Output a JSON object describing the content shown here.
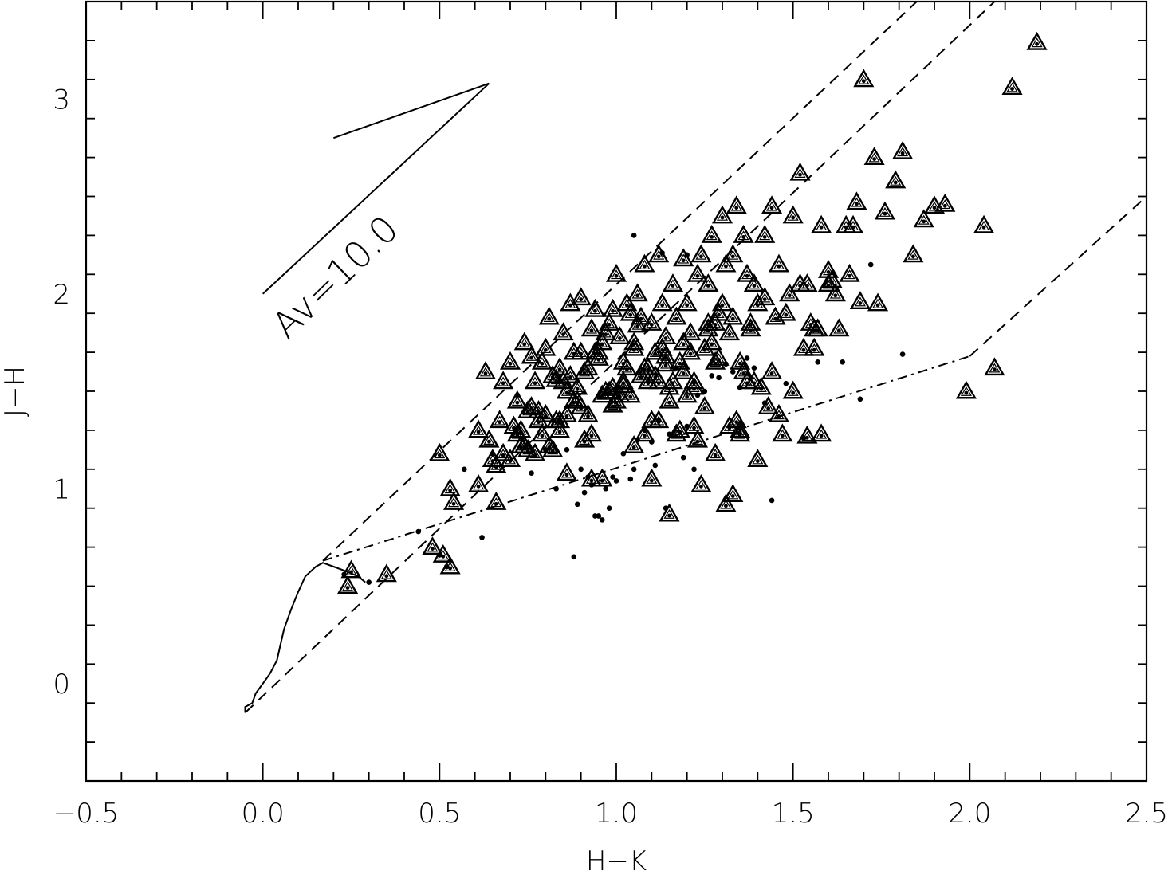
{
  "chart_data": {
    "type": "scatter",
    "title": "",
    "xlabel": "H−K",
    "ylabel": "J−H",
    "xlim": [
      -0.5,
      2.5
    ],
    "ylim": [
      -0.5,
      3.5
    ],
    "x_ticks": [
      {
        "value": -0.5,
        "label": "−0.5"
      },
      {
        "value": 0.0,
        "label": "0.0"
      },
      {
        "value": 0.5,
        "label": "0.5"
      },
      {
        "value": 1.0,
        "label": "1.0"
      },
      {
        "value": 1.5,
        "label": "1.5"
      },
      {
        "value": 2.0,
        "label": "2.0"
      },
      {
        "value": 2.5,
        "label": "2.5"
      }
    ],
    "y_ticks": [
      {
        "value": 0,
        "label": "0"
      },
      {
        "value": 1,
        "label": "1"
      },
      {
        "value": 2,
        "label": "2"
      },
      {
        "value": 3,
        "label": "3"
      }
    ],
    "x_minor_step": 0.1,
    "y_minor_step": 0.2,
    "grid": false,
    "legend": "none",
    "annotation": {
      "text": "Av=10.0",
      "vector_lines": [
        [
          [
            0.0,
            2.0
          ],
          [
            0.64,
            3.08
          ]
        ],
        [
          [
            0.2,
            2.8
          ],
          [
            0.64,
            3.08
          ]
        ]
      ],
      "text_anchor": [
        0.07,
        1.76
      ],
      "rotation_deg": -44
    },
    "reference_lines": [
      {
        "name": "main-sequence-locus",
        "style": "solid",
        "points": [
          [
            -0.05,
            -0.15
          ],
          [
            -0.05,
            -0.12
          ],
          [
            -0.03,
            -0.1
          ],
          [
            -0.02,
            -0.05
          ],
          [
            0.0,
            0.0
          ],
          [
            0.02,
            0.05
          ],
          [
            0.04,
            0.12
          ],
          [
            0.05,
            0.2
          ],
          [
            0.06,
            0.28
          ],
          [
            0.08,
            0.38
          ],
          [
            0.1,
            0.47
          ],
          [
            0.12,
            0.55
          ],
          [
            0.15,
            0.6
          ],
          [
            0.17,
            0.62
          ],
          [
            0.2,
            0.6
          ],
          [
            0.23,
            0.58
          ],
          [
            0.27,
            0.55
          ],
          [
            0.29,
            0.52
          ]
        ]
      },
      {
        "name": "reddening-band-upper",
        "style": "dashed",
        "points": [
          [
            0.17,
            0.63
          ],
          [
            1.85,
            3.5
          ]
        ]
      },
      {
        "name": "reddening-band-middle",
        "style": "dashed",
        "points": [
          [
            -0.05,
            -0.15
          ],
          [
            2.07,
            3.5
          ]
        ]
      },
      {
        "name": "reddening-band-lower",
        "style": "dashed",
        "points": [
          [
            2.0,
            1.68
          ],
          [
            2.5,
            2.5
          ]
        ]
      },
      {
        "name": "ctts-locus",
        "style": "dashdot",
        "points": [
          [
            0.17,
            0.63
          ],
          [
            2.0,
            1.68
          ]
        ]
      }
    ],
    "series": [
      {
        "marker": "triangle-with-dot",
        "x": [
          0.25,
          0.24,
          0.35,
          0.48,
          0.51,
          0.53,
          0.5,
          0.53,
          0.54,
          0.61,
          0.63,
          0.61,
          0.64,
          0.65,
          0.66,
          0.67,
          0.68,
          0.7,
          0.72,
          0.73,
          0.74,
          0.75,
          0.76,
          0.77,
          0.78,
          0.8,
          0.81,
          0.82,
          0.83,
          0.84,
          0.85,
          0.86,
          0.87,
          0.88,
          0.89,
          0.9,
          0.91,
          0.92,
          0.93,
          0.94,
          0.95,
          0.96,
          0.97,
          0.98,
          0.99,
          1.0,
          1.01,
          1.02,
          1.03,
          1.04,
          1.05,
          1.06,
          1.07,
          1.08,
          1.09,
          1.1,
          1.11,
          1.12,
          1.13,
          1.14,
          1.15,
          1.16,
          1.17,
          1.18,
          1.19,
          1.2,
          1.21,
          1.22,
          1.23,
          1.24,
          1.25,
          1.26,
          1.27,
          1.28,
          1.29,
          1.3,
          1.31,
          1.32,
          1.33,
          1.34,
          1.35,
          1.36,
          1.37,
          1.38,
          1.39,
          1.4,
          1.42,
          1.44,
          1.46,
          1.48,
          1.5,
          1.52,
          1.54,
          1.56,
          1.58,
          1.6,
          1.62,
          1.65,
          1.68,
          1.7,
          1.73,
          1.76,
          1.79,
          1.81,
          1.84,
          1.87,
          1.9,
          1.93,
          2.04,
          2.12,
          2.19,
          1.69,
          1.99,
          2.07,
          1.1,
          1.15,
          1.24,
          1.31,
          1.33,
          1.35,
          0.86,
          0.93,
          0.96,
          0.82,
          0.77,
          0.74,
          0.7,
          1.02,
          1.08,
          0.88,
          0.99,
          1.12,
          1.19,
          1.28,
          1.36,
          1.41,
          0.9,
          0.95,
          1.05,
          1.13,
          1.21,
          1.27,
          1.38,
          1.45,
          1.53,
          1.57,
          1.63,
          1.74,
          0.79,
          0.83,
          0.87,
          0.92,
          0.97,
          1.01,
          1.06,
          1.09,
          1.14,
          1.17,
          1.22,
          1.26,
          1.29,
          1.34,
          1.39,
          1.44,
          1.49,
          1.55,
          1.61,
          1.66,
          0.75,
          0.8,
          0.85,
          0.89,
          0.94,
          0.98,
          1.03,
          1.07,
          1.11,
          1.16,
          1.2,
          1.25,
          1.3,
          1.37,
          1.43,
          1.5,
          1.58,
          0.72,
          0.78,
          0.84,
          0.91,
          1.0,
          1.04,
          1.12,
          1.18,
          1.23,
          1.32,
          1.4,
          1.47,
          1.54,
          0.68,
          0.71,
          0.76,
          0.81,
          0.86,
          0.93,
          0.99,
          1.05,
          1.1,
          1.15,
          1.22,
          1.28,
          1.35,
          1.46,
          1.56,
          1.6,
          0.66,
          0.73,
          0.79,
          0.84,
          0.9,
          0.96,
          1.02,
          1.08,
          1.14,
          1.19,
          1.26,
          1.33,
          1.42,
          1.52,
          1.67
        ],
        "y": [
          0.58,
          0.5,
          0.56,
          0.7,
          0.66,
          0.6,
          1.18,
          1.0,
          0.93,
          1.3,
          1.6,
          1.02,
          1.25,
          1.15,
          0.93,
          1.35,
          1.55,
          1.65,
          1.45,
          1.3,
          1.75,
          1.2,
          1.68,
          1.55,
          1.4,
          1.72,
          1.88,
          1.58,
          1.35,
          1.62,
          1.8,
          1.5,
          1.95,
          1.7,
          1.45,
          1.98,
          1.6,
          1.38,
          1.82,
          1.92,
          1.7,
          1.75,
          1.5,
          1.85,
          1.92,
          2.1,
          1.78,
          1.65,
          1.95,
          1.9,
          1.72,
          2.0,
          1.88,
          2.15,
          1.62,
          1.85,
          1.7,
          2.2,
          1.95,
          1.78,
          1.52,
          2.05,
          1.88,
          1.65,
          2.18,
          1.95,
          1.8,
          1.55,
          2.1,
          2.2,
          1.72,
          2.05,
          2.3,
          1.85,
          1.9,
          2.4,
          2.15,
          1.8,
          2.2,
          2.45,
          1.65,
          2.3,
          2.1,
          1.85,
          2.05,
          1.95,
          2.3,
          2.45,
          2.15,
          1.9,
          2.4,
          2.62,
          2.05,
          1.82,
          2.35,
          2.12,
          2.0,
          2.35,
          2.47,
          3.1,
          2.7,
          2.42,
          2.58,
          2.73,
          2.2,
          2.38,
          2.45,
          2.46,
          2.35,
          3.06,
          3.29,
          1.96,
          1.5,
          1.62,
          1.05,
          0.87,
          1.02,
          0.92,
          0.97,
          1.3,
          1.08,
          1.05,
          1.05,
          1.2,
          1.18,
          1.22,
          1.15,
          1.53,
          1.28,
          1.45,
          1.43,
          1.55,
          1.6,
          1.65,
          1.6,
          1.52,
          1.7,
          1.67,
          1.75,
          1.72,
          1.7,
          1.75,
          1.82,
          1.88,
          1.72,
          1.82,
          1.82,
          1.95,
          1.65,
          1.56,
          1.58,
          1.62,
          1.8,
          1.48,
          1.84,
          1.55,
          1.64,
          1.28,
          1.52,
          1.85,
          1.67,
          1.35,
          1.55,
          1.6,
          2.0,
          1.85,
          2.07,
          2.1,
          1.4,
          1.38,
          1.55,
          1.52,
          1.7,
          1.5,
          1.62,
          1.58,
          1.58,
          1.55,
          1.48,
          1.42,
          1.95,
          1.55,
          1.42,
          1.5,
          1.28,
          1.28,
          1.35,
          1.3,
          1.25,
          1.45,
          1.48,
          1.35,
          1.3,
          1.25,
          1.32,
          1.15,
          1.28,
          1.27,
          1.18,
          1.32,
          1.42,
          1.22,
          1.38,
          1.28,
          1.52,
          1.22,
          1.35,
          1.45,
          1.32,
          1.18,
          1.28,
          1.38,
          1.72,
          2.05,
          1.12,
          1.22,
          1.28,
          1.35,
          1.42,
          1.48,
          1.55,
          1.62,
          1.68,
          1.75,
          1.82,
          1.88,
          1.98,
          2.05,
          2.35
        ]
      },
      {
        "marker": "dot",
        "x": [
          0.23,
          0.3,
          0.44,
          0.5,
          0.52,
          0.57,
          0.62,
          0.65,
          0.72,
          0.76,
          0.8,
          0.83,
          0.86,
          0.88,
          0.9,
          0.91,
          0.93,
          0.94,
          0.96,
          0.97,
          0.99,
          1.0,
          1.02,
          1.04,
          1.05,
          1.06,
          1.08,
          1.1,
          1.11,
          1.12,
          1.14,
          1.15,
          1.17,
          1.19,
          1.2,
          1.22,
          1.23,
          1.25,
          1.27,
          1.29,
          1.31,
          1.33,
          1.35,
          1.37,
          1.39,
          1.42,
          1.44,
          1.48,
          1.53,
          1.57,
          1.64,
          1.69,
          1.72,
          1.81,
          1.05,
          1.13,
          1.2,
          0.95,
          0.98,
          0.92,
          0.89
        ],
        "y": [
          0.56,
          0.52,
          0.78,
          0.66,
          0.6,
          1.1,
          0.75,
          1.18,
          1.48,
          1.08,
          1.2,
          1.0,
          1.2,
          0.65,
          1.1,
          0.98,
          1.02,
          0.86,
          0.84,
          1.0,
          1.06,
          1.04,
          1.18,
          1.05,
          1.1,
          1.25,
          1.3,
          1.24,
          1.12,
          1.35,
          0.9,
          1.28,
          1.62,
          1.16,
          1.32,
          1.1,
          1.48,
          1.5,
          1.58,
          1.57,
          1.64,
          1.6,
          1.52,
          1.67,
          1.62,
          1.44,
          0.94,
          1.54,
          1.26,
          1.65,
          1.65,
          1.46,
          2.15,
          1.69,
          2.3,
          2.21,
          2.2,
          0.86,
          0.9,
          1.06,
          0.92
        ]
      }
    ]
  }
}
